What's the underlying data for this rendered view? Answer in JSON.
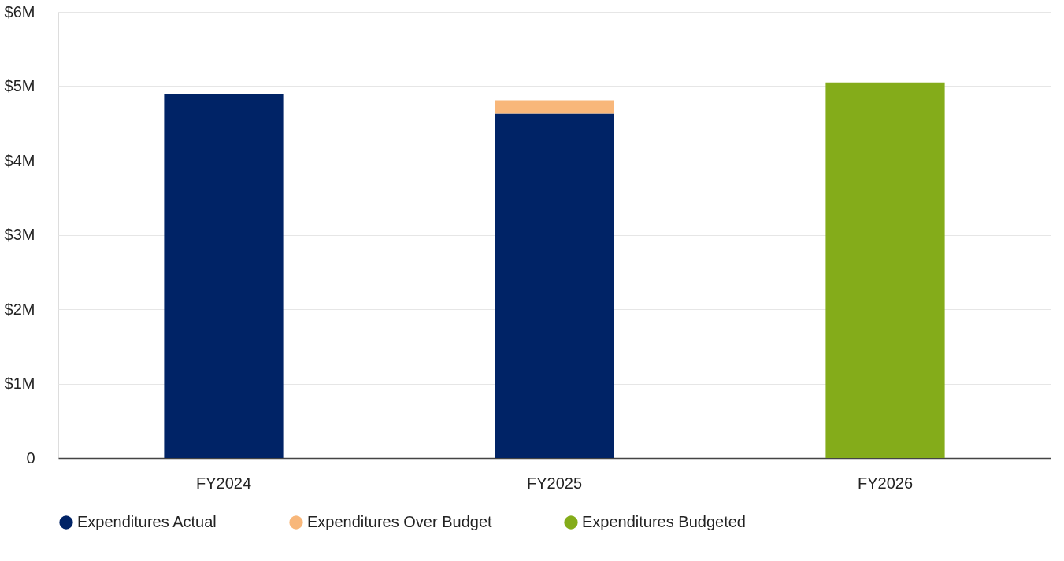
{
  "chart_data": {
    "type": "bar",
    "stacked": true,
    "categories": [
      "FY2024",
      "FY2025",
      "FY2026"
    ],
    "series": [
      {
        "name": "Expenditures Actual",
        "color": "#002366",
        "values": [
          4.9,
          4.63,
          null
        ]
      },
      {
        "name": "Expenditures Over Budget",
        "color": "#f8b77a",
        "values": [
          null,
          0.18,
          null
        ]
      },
      {
        "name": "Expenditures Budgeted",
        "color": "#84ac1a",
        "values": [
          null,
          null,
          5.05
        ]
      }
    ],
    "ylim": [
      0,
      6
    ],
    "yticks": [
      0,
      {
        "value": 1,
        "label": "$1M"
      },
      {
        "value": 2,
        "label": "$2M"
      },
      {
        "value": 3,
        "label": "$3M"
      },
      {
        "value": 4,
        "label": "$4M"
      },
      {
        "value": 5,
        "label": "$5M"
      },
      {
        "value": 6,
        "label": "$6M"
      }
    ],
    "grid": "y",
    "legend": "bottom"
  }
}
